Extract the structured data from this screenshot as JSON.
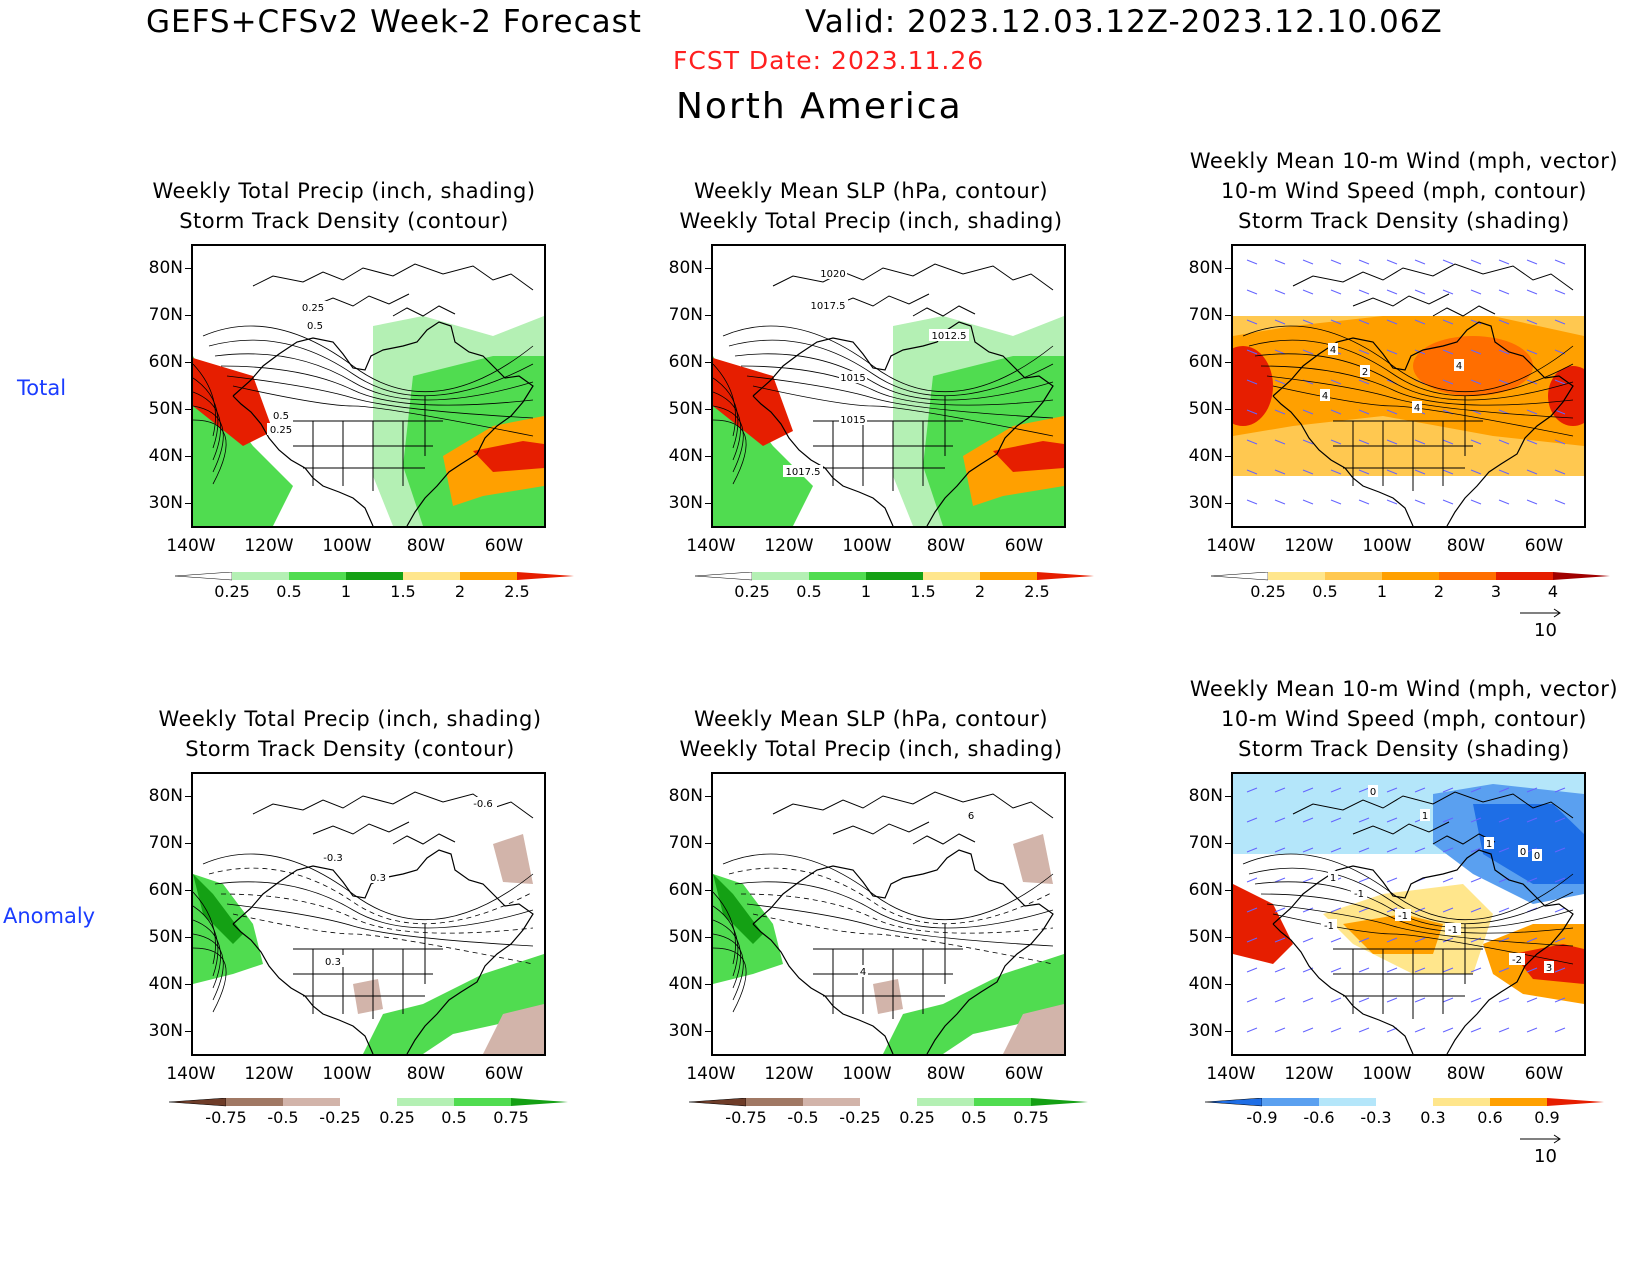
{
  "header": {
    "title": "GEFS+CFSv2 Week-2 Forecast",
    "valid": "Valid: 2023.12.03.12Z-2023.12.10.06Z",
    "fcst_date": "FCST Date: 2023.11.26",
    "region": "North America"
  },
  "row_labels": {
    "total": "Total",
    "anomaly": "Anomaly"
  },
  "axes": {
    "lat_ticks": [
      "80N",
      "70N",
      "60N",
      "50N",
      "40N",
      "30N"
    ],
    "lon_ticks": [
      "140W",
      "120W",
      "100W",
      "80W",
      "60W"
    ]
  },
  "panels": {
    "p1": {
      "line1": "Weekly Total Precip (inch, shading)",
      "line2": "Storm Track Density (contour)",
      "labels": [
        "0.25",
        "0.5",
        "0.5",
        "0.25"
      ]
    },
    "p2": {
      "line1": "Weekly Mean SLP (hPa, contour)",
      "line2": "Weekly Total Precip (inch, shading)",
      "labels": [
        "1020",
        "1017.5",
        "1012.5",
        "1015",
        "1015",
        "1017.5"
      ]
    },
    "p3": {
      "line1": "Weekly Mean 10-m Wind (mph, vector)",
      "line2": "10-m Wind Speed (mph, contour)",
      "line3": "Storm Track Density (shading)",
      "labels": [
        "4",
        "2",
        "4",
        "4",
        "4"
      ]
    },
    "p4": {
      "line1": "Weekly Total Precip (inch, shading)",
      "line2": "Storm Track Density (contour)",
      "labels": [
        "-0.6",
        "-0.3",
        "0.3",
        "0.3"
      ]
    },
    "p5": {
      "line1": "Weekly Mean SLP (hPa, contour)",
      "line2": "Weekly Total Precip (inch, shading)",
      "labels": [
        "6",
        "4"
      ]
    },
    "p6": {
      "line1": "Weekly Mean 10-m Wind (mph, vector)",
      "line2": "10-m Wind Speed (mph, contour)",
      "line3": "Storm Track Density (shading)",
      "labels": [
        "0",
        "1",
        "1",
        "0",
        "0",
        "1",
        "-1",
        "-1",
        "-1",
        "-1",
        "-2",
        "3"
      ]
    }
  },
  "colorbars": {
    "precip_total": {
      "labels": [
        "0.25",
        "0.5",
        "1",
        "1.5",
        "2",
        "2.5"
      ],
      "colors": [
        "#ffffff",
        "#b4f0b4",
        "#50dc50",
        "#14a014",
        "#ffe68c",
        "#ffa000",
        "#e61e00"
      ]
    },
    "density_total": {
      "labels": [
        "0.25",
        "0.5",
        "1",
        "2",
        "3",
        "4"
      ],
      "colors": [
        "#ffffff",
        "#ffe68c",
        "#ffc850",
        "#ffa000",
        "#ff6e00",
        "#e61e00",
        "#a00000"
      ]
    },
    "precip_anom": {
      "labels": [
        "-0.75",
        "-0.5",
        "-0.25",
        "0.25",
        "0.5",
        "0.75"
      ],
      "colors": [
        "#6e3c28",
        "#a07864",
        "#d2b4aa",
        "#ffffff",
        "#b4f0b4",
        "#50dc50",
        "#14a014"
      ]
    },
    "density_anom": {
      "labels": [
        "-0.9",
        "-0.6",
        "-0.3",
        "0.3",
        "0.6",
        "0.9"
      ],
      "colors": [
        "#1e6ee6",
        "#5aa0f0",
        "#b4e6fa",
        "#ffffff",
        "#ffe68c",
        "#ffa000",
        "#e61e00"
      ]
    }
  },
  "vector_ref": {
    "top": "10",
    "bottom": "10"
  },
  "colors": {
    "accent_red": "#ff2020",
    "label_blue": "#1a3cff",
    "vector": "#6464ff"
  }
}
